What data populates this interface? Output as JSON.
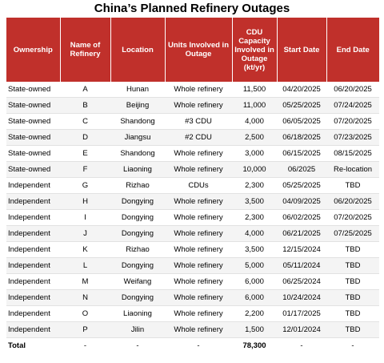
{
  "title": "China’s Planned Refinery Outages",
  "headers": {
    "ownership": "Ownership",
    "name": "Name of Refinery",
    "location": "Location",
    "units": "Units Involved in Outage",
    "capacity": "CDU Capacity Involved in Outage (kt/yr)",
    "start": "Start Date",
    "end": "End Date"
  },
  "rows": [
    {
      "ownership": "State-owned",
      "name": "A",
      "location": "Hunan",
      "units": "Whole refinery",
      "capacity": "11,500",
      "start": "04/20/2025",
      "end": "06/20/2025"
    },
    {
      "ownership": "State-owned",
      "name": "B",
      "location": "Beijing",
      "units": "Whole refinery",
      "capacity": "11,000",
      "start": "05/25/2025",
      "end": "07/24/2025"
    },
    {
      "ownership": "State-owned",
      "name": "C",
      "location": "Shandong",
      "units": "#3 CDU",
      "capacity": "4,000",
      "start": "06/05/2025",
      "end": "07/20/2025"
    },
    {
      "ownership": "State-owned",
      "name": "D",
      "location": "Jiangsu",
      "units": "#2 CDU",
      "capacity": "2,500",
      "start": "06/18/2025",
      "end": "07/23/2025"
    },
    {
      "ownership": "State-owned",
      "name": "E",
      "location": "Shandong",
      "units": "Whole refinery",
      "capacity": "3,000",
      "start": "06/15/2025",
      "end": "08/15/2025"
    },
    {
      "ownership": "State-owned",
      "name": "F",
      "location": "Liaoning",
      "units": "Whole refinery",
      "capacity": "10,000",
      "start": "06/2025",
      "end": "Re-location"
    },
    {
      "ownership": "Independent",
      "name": "G",
      "location": "Rizhao",
      "units": "CDUs",
      "capacity": "2,300",
      "start": "05/25/2025",
      "end": "TBD"
    },
    {
      "ownership": "Independent",
      "name": "H",
      "location": "Dongying",
      "units": "Whole refinery",
      "capacity": "3,500",
      "start": "04/09/2025",
      "end": "06/20/2025"
    },
    {
      "ownership": "Independent",
      "name": "I",
      "location": "Dongying",
      "units": "Whole refinery",
      "capacity": "2,300",
      "start": "06/02/2025",
      "end": "07/20/2025"
    },
    {
      "ownership": "Independent",
      "name": "J",
      "location": "Dongying",
      "units": "Whole refinery",
      "capacity": "4,000",
      "start": "06/21/2025",
      "end": "07/25/2025"
    },
    {
      "ownership": "Independent",
      "name": "K",
      "location": "Rizhao",
      "units": "Whole refinery",
      "capacity": "3,500",
      "start": "12/15/2024",
      "end": "TBD"
    },
    {
      "ownership": "Independent",
      "name": "L",
      "location": "Dongying",
      "units": "Whole refinery",
      "capacity": "5,000",
      "start": "05/11/2024",
      "end": "TBD"
    },
    {
      "ownership": "Independent",
      "name": "M",
      "location": "Weifang",
      "units": "Whole refinery",
      "capacity": "6,000",
      "start": "06/25/2024",
      "end": "TBD"
    },
    {
      "ownership": "Independent",
      "name": "N",
      "location": "Dongying",
      "units": "Whole refinery",
      "capacity": "6,000",
      "start": "10/24/2024",
      "end": "TBD"
    },
    {
      "ownership": "Independent",
      "name": "O",
      "location": "Liaoning",
      "units": "Whole refinery",
      "capacity": "2,200",
      "start": "01/17/2025",
      "end": "TBD"
    },
    {
      "ownership": "Independent",
      "name": "P",
      "location": "Jilin",
      "units": "Whole refinery",
      "capacity": "1,500",
      "start": "12/01/2024",
      "end": "TBD"
    }
  ],
  "total": {
    "label": "Total",
    "name": "-",
    "location": "-",
    "units": "-",
    "capacity": "78,300",
    "start": "-",
    "end": "-"
  }
}
